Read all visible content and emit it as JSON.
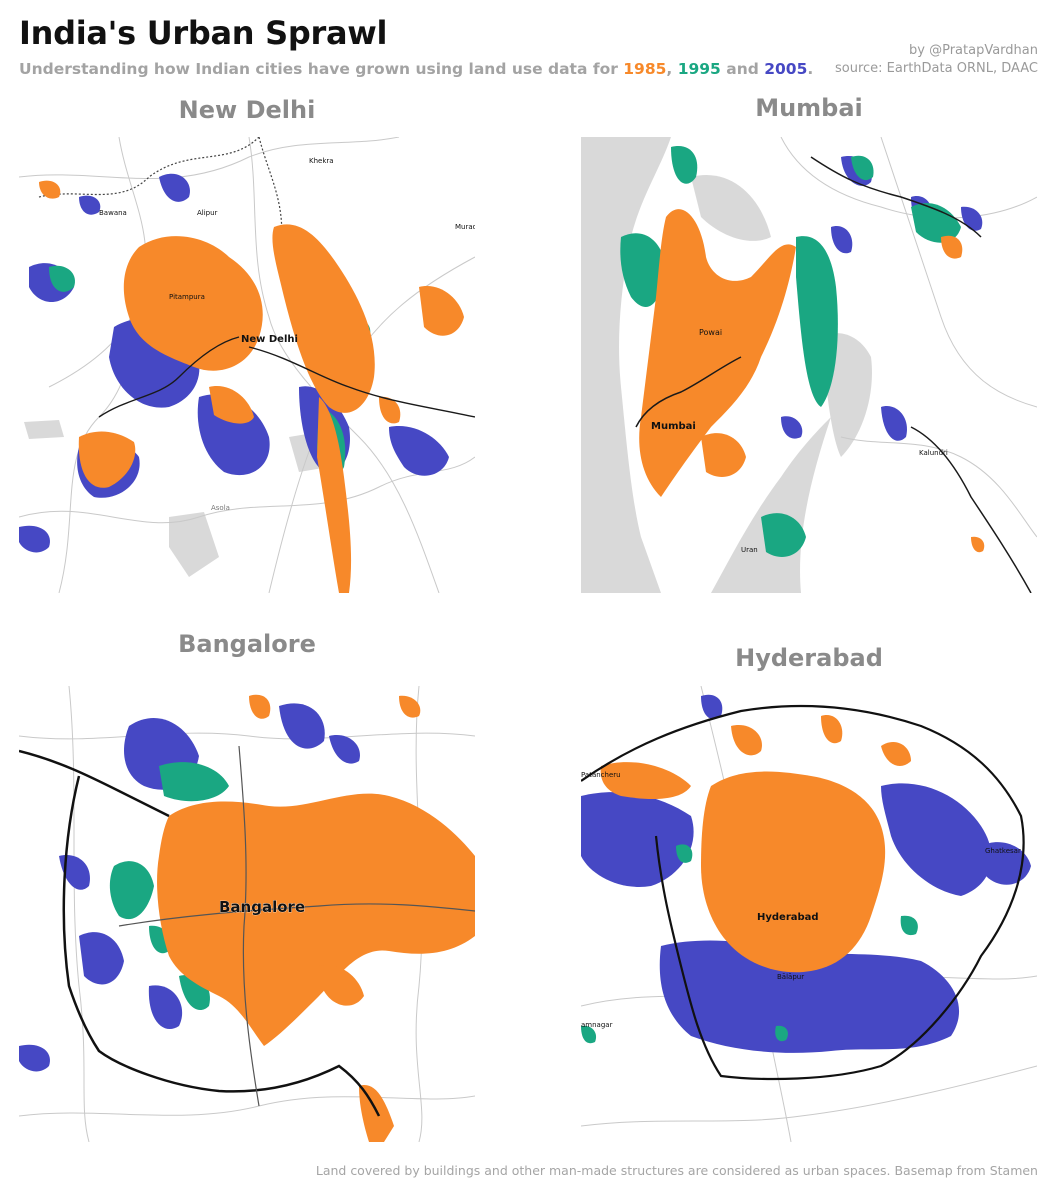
{
  "title": "India's Urban Sprawl",
  "subtitle": {
    "prefix": "Understanding how Indian cities have grown using land use data for ",
    "sep1": ", ",
    "sep2": " and ",
    "suffix": "."
  },
  "legend": [
    {
      "year": "1985",
      "color": "#f7892a"
    },
    {
      "year": "1995",
      "color": "#1aa782"
    },
    {
      "year": "2005",
      "color": "#4648c4"
    }
  ],
  "credit": {
    "author": "by @PratapVardhan",
    "source": "source: EarthData ORNL, DAAC"
  },
  "footer": "Land covered by buildings and other man-made structures are considered as urban spaces. Basemap from Stamen",
  "colors": {
    "y1985": "#f7892a",
    "y1995": "#1aa782",
    "y2005": "#4648c4",
    "water": "#d9d9d9",
    "road": "#8c8c8c",
    "highway": "#1a1a1a"
  },
  "maps": {
    "delhi": {
      "name": "New Delhi",
      "labels": {
        "center": "New Delhi",
        "khekra": "Khekra",
        "bawana": "Bawana",
        "alipur": "Alipur",
        "pitampura": "Pitampura",
        "asola": "Asola",
        "muradnagar": "Murad"
      }
    },
    "mumbai": {
      "name": "Mumbai",
      "labels": {
        "center": "Mumbai",
        "powai": "Powai",
        "kalundri": "Kalundri",
        "uran": "Uran"
      }
    },
    "bangalore": {
      "name": "Bangalore",
      "labels": {
        "center": "Bangalore"
      }
    },
    "hyderabad": {
      "name": "Hyderabad",
      "labels": {
        "center": "Hyderabad",
        "balapur": "Bālāpur",
        "patancheru": "Patancheru",
        "ghatkesar": "Ghatkesar",
        "amnagar": "amnagar"
      }
    }
  }
}
